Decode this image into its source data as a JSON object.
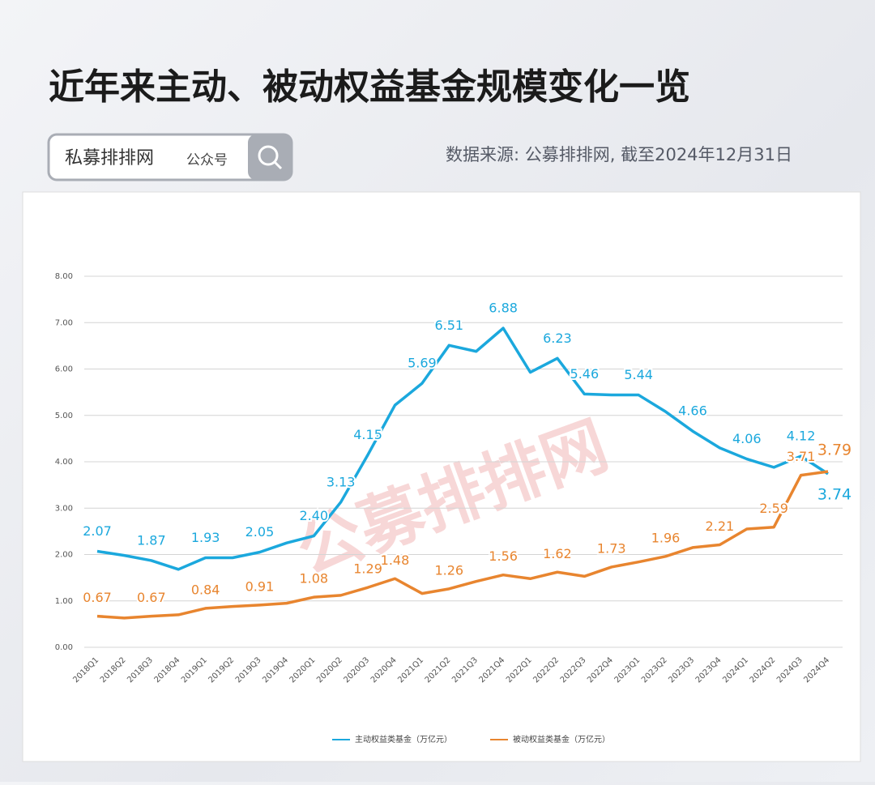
{
  "header": {
    "title": "近年来主动、被动权益基金规模变化一览",
    "search_text": "私募排排网",
    "search_sub": "公众号",
    "source": "数据来源: 公募排排网, 截至2024年12月31日"
  },
  "watermark": "公募排排网",
  "chart_data": {
    "type": "line",
    "categories": [
      "2018Q1",
      "2018Q2",
      "2018Q3",
      "2018Q4",
      "2019Q1",
      "2019Q2",
      "2019Q3",
      "2019Q4",
      "2020Q1",
      "2020Q2",
      "2020Q3",
      "2020Q4",
      "2021Q1",
      "2021Q2",
      "2021Q3",
      "2021Q4",
      "2022Q1",
      "2022Q2",
      "2022Q3",
      "2022Q4",
      "2023Q1",
      "2023Q2",
      "2023Q3",
      "2023Q4",
      "2024Q1",
      "2024Q2",
      "2024Q3",
      "2024Q4"
    ],
    "series": [
      {
        "name": "主动权益类基金（万亿元）",
        "color": "#1ba8dd",
        "values": [
          2.07,
          1.98,
          1.87,
          1.68,
          1.93,
          1.93,
          2.05,
          2.25,
          2.4,
          3.13,
          4.15,
          5.22,
          5.69,
          6.51,
          6.38,
          6.88,
          5.93,
          6.23,
          5.46,
          5.44,
          5.44,
          5.08,
          4.66,
          4.3,
          4.06,
          3.88,
          4.12,
          3.74
        ],
        "value_labels": [
          "2.07",
          null,
          "1.87",
          null,
          "1.93",
          null,
          "2.05",
          null,
          "2.40",
          "3.13",
          "4.15",
          null,
          "5.69",
          "6.51",
          null,
          "6.88",
          null,
          "6.23",
          "5.46",
          null,
          "5.44",
          null,
          "4.66",
          null,
          "4.06",
          null,
          "4.12",
          "3.74"
        ]
      },
      {
        "name": "被动权益类基金（万亿元）",
        "color": "#e8852f",
        "values": [
          0.67,
          0.63,
          0.67,
          0.7,
          0.84,
          0.88,
          0.91,
          0.95,
          1.08,
          1.12,
          1.29,
          1.48,
          1.16,
          1.26,
          1.42,
          1.56,
          1.48,
          1.62,
          1.53,
          1.73,
          1.84,
          1.96,
          2.15,
          2.21,
          2.55,
          2.59,
          3.71,
          3.79
        ],
        "value_labels": [
          "0.67",
          null,
          "0.67",
          null,
          "0.84",
          null,
          "0.91",
          null,
          "1.08",
          null,
          "1.29",
          "1.48",
          null,
          "1.26",
          null,
          "1.56",
          null,
          "1.62",
          null,
          "1.73",
          null,
          "1.96",
          null,
          "2.21",
          null,
          "2.59",
          "3.71",
          "3.79"
        ]
      }
    ],
    "ylim": [
      0,
      8
    ],
    "yticks": [
      {
        "value": 0,
        "label": "0.00"
      },
      {
        "value": 1,
        "label": "1.00"
      },
      {
        "value": 2,
        "label": "2.00"
      },
      {
        "value": 3,
        "label": "3.00"
      },
      {
        "value": 4,
        "label": "4.00"
      },
      {
        "value": 5,
        "label": "5.00"
      },
      {
        "value": 6,
        "label": "6.00"
      },
      {
        "value": 7,
        "label": "7.00"
      },
      {
        "value": 8,
        "label": "8.00"
      }
    ],
    "grid": true,
    "legend": "bottom"
  }
}
